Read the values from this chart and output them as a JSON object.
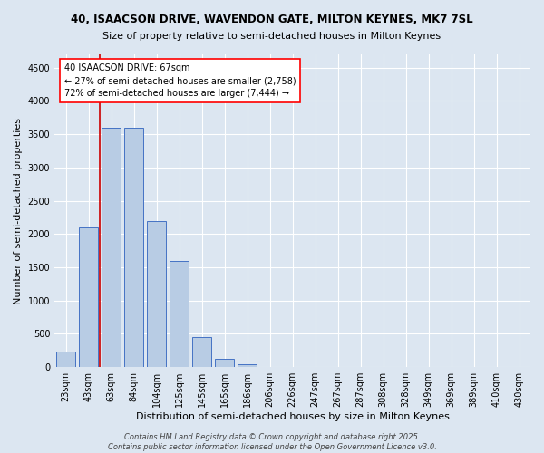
{
  "title_line1": "40, ISAACSON DRIVE, WAVENDON GATE, MILTON KEYNES, MK7 7SL",
  "title_line2": "Size of property relative to semi-detached houses in Milton Keynes",
  "xlabel": "Distribution of semi-detached houses by size in Milton Keynes",
  "ylabel": "Number of semi-detached properties",
  "categories": [
    "23sqm",
    "43sqm",
    "63sqm",
    "84sqm",
    "104sqm",
    "125sqm",
    "145sqm",
    "165sqm",
    "186sqm",
    "206sqm",
    "226sqm",
    "247sqm",
    "267sqm",
    "287sqm",
    "308sqm",
    "328sqm",
    "349sqm",
    "369sqm",
    "389sqm",
    "410sqm",
    "430sqm"
  ],
  "values": [
    230,
    2100,
    3600,
    3600,
    2200,
    1600,
    450,
    120,
    50,
    0,
    0,
    0,
    0,
    0,
    0,
    0,
    0,
    0,
    0,
    0,
    0
  ],
  "bar_color": "#b8cce4",
  "bar_edge_color": "#4472c4",
  "annotation_title": "40 ISAACSON DRIVE: 67sqm",
  "annotation_line1": "← 27% of semi-detached houses are smaller (2,758)",
  "annotation_line2": "72% of semi-detached houses are larger (7,444) →",
  "annotation_box_color": "#ffffff",
  "annotation_box_edge_color": "#ff0000",
  "vline_color": "#cc0000",
  "vline_x": 1.5,
  "ylim": [
    0,
    4700
  ],
  "yticks": [
    0,
    500,
    1000,
    1500,
    2000,
    2500,
    3000,
    3500,
    4000,
    4500
  ],
  "background_color": "#dce6f1",
  "plot_bg_color": "#dce6f1",
  "footer_line1": "Contains HM Land Registry data © Crown copyright and database right 2025.",
  "footer_line2": "Contains public sector information licensed under the Open Government Licence v3.0.",
  "title_fontsize": 8.5,
  "subtitle_fontsize": 8,
  "axis_label_fontsize": 8,
  "tick_fontsize": 7,
  "annotation_fontsize": 7,
  "footer_fontsize": 6
}
